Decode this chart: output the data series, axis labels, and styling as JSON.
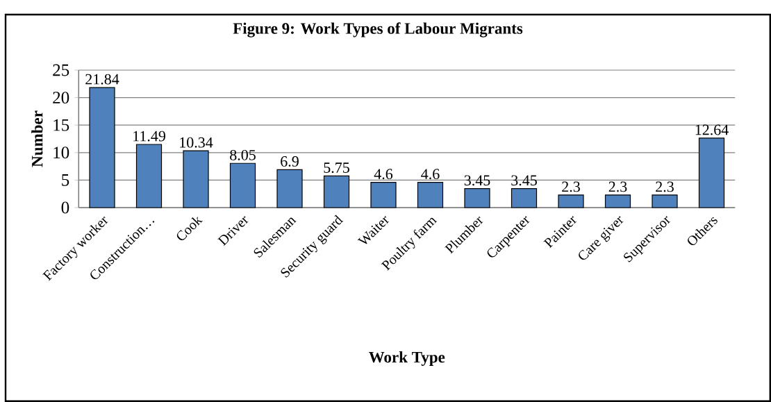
{
  "chart_data": {
    "type": "bar",
    "title": "Figure 9: Work Types of Labour Migrants",
    "xlabel": "Work Type",
    "ylabel": "Number",
    "categories": [
      "Factory worker",
      "Construction…",
      "Cook",
      "Driver",
      "Salesman",
      "Security guard",
      "Waiter",
      "Poultry farm",
      "Plumber",
      "Carpenter",
      "Painter",
      "Care giver",
      "Supervisor",
      "Others"
    ],
    "values": [
      21.84,
      11.49,
      10.34,
      8.05,
      6.9,
      5.75,
      4.6,
      4.6,
      3.45,
      3.45,
      2.3,
      2.3,
      2.3,
      12.64
    ],
    "color": "#4f81bd",
    "ylim": [
      0,
      25
    ],
    "yticks": [
      0,
      5,
      10,
      15,
      20,
      25
    ],
    "grid": "y",
    "data_labels": true
  }
}
